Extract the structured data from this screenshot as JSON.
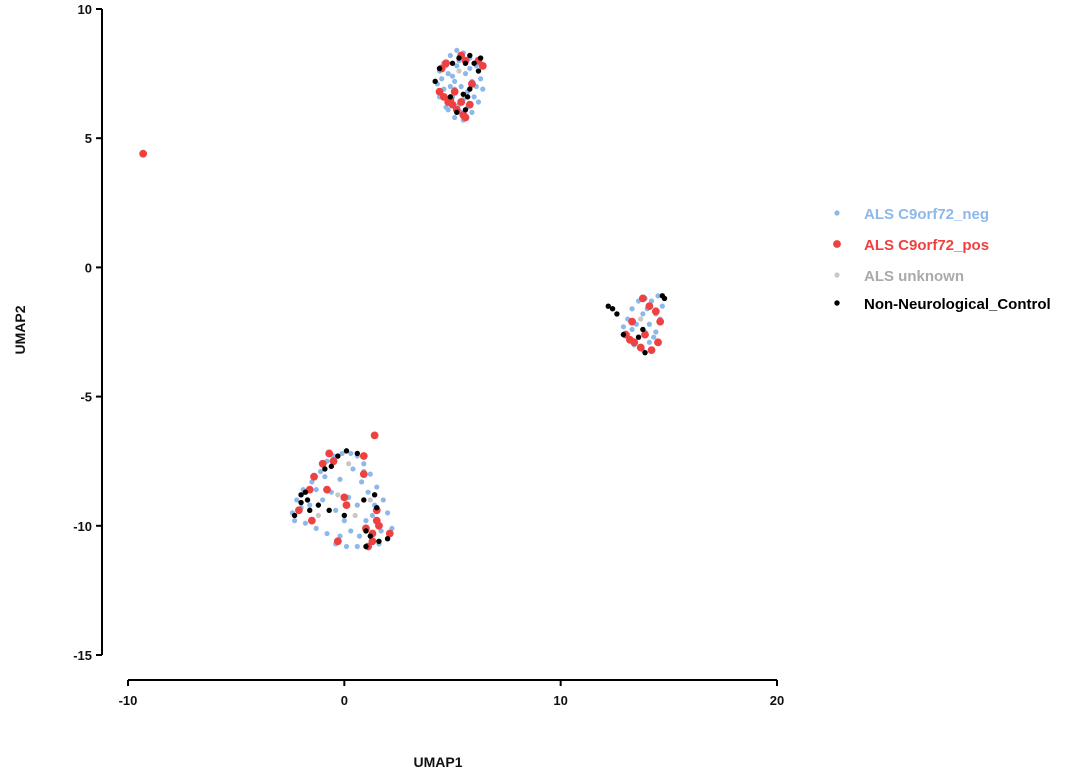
{
  "chart_data": {
    "type": "scatter",
    "xlabel": "UMAP1",
    "ylabel": "UMAP2",
    "xlim": [
      -10,
      20
    ],
    "ylim": [
      -15,
      10
    ],
    "xticks": [
      -10,
      0,
      10,
      20
    ],
    "yticks": [
      10,
      5,
      0,
      -5,
      -10,
      -15
    ],
    "grid": false,
    "legend_position": "right",
    "series": [
      {
        "name": "ALS C9orf72_neg",
        "color": "#8db8ec",
        "marker_size": "small",
        "points": [
          [
            4.6,
            7.9
          ],
          [
            4.9,
            8.2
          ],
          [
            5.2,
            8.4
          ],
          [
            5.5,
            8.3
          ],
          [
            5.8,
            8.1
          ],
          [
            6.1,
            7.8
          ],
          [
            6.3,
            7.3
          ],
          [
            6.4,
            6.9
          ],
          [
            6.2,
            6.4
          ],
          [
            5.9,
            6.0
          ],
          [
            5.5,
            5.7
          ],
          [
            5.1,
            5.8
          ],
          [
            4.7,
            6.2
          ],
          [
            4.4,
            6.6
          ],
          [
            4.3,
            7.1
          ],
          [
            4.4,
            7.6
          ],
          [
            4.8,
            7.5
          ],
          [
            5.1,
            7.2
          ],
          [
            5.4,
            7.0
          ],
          [
            5.7,
            6.8
          ],
          [
            5.0,
            6.6
          ],
          [
            5.3,
            6.3
          ],
          [
            5.6,
            7.5
          ],
          [
            5.9,
            7.2
          ],
          [
            4.9,
            7.0
          ],
          [
            5.2,
            7.8
          ],
          [
            6.0,
            6.6
          ],
          [
            4.6,
            6.9
          ],
          [
            5.4,
            6.0
          ],
          [
            5.8,
            7.7
          ],
          [
            5.0,
            7.4
          ],
          [
            5.5,
            6.5
          ],
          [
            4.8,
            6.1
          ],
          [
            6.2,
            7.6
          ],
          [
            5.3,
            8.0
          ],
          [
            4.5,
            7.3
          ],
          [
            5.7,
            6.2
          ],
          [
            6.1,
            7.0
          ],
          [
            5.1,
            6.9
          ],
          [
            4.7,
            7.8
          ],
          [
            13.1,
            -2.0
          ],
          [
            13.3,
            -1.6
          ],
          [
            13.6,
            -1.3
          ],
          [
            13.9,
            -1.2
          ],
          [
            14.2,
            -1.3
          ],
          [
            14.5,
            -1.1
          ],
          [
            14.7,
            -1.5
          ],
          [
            14.6,
            -2.0
          ],
          [
            14.4,
            -2.5
          ],
          [
            14.1,
            -2.9
          ],
          [
            13.8,
            -3.2
          ],
          [
            13.4,
            -3.0
          ],
          [
            13.1,
            -2.6
          ],
          [
            12.9,
            -2.3
          ],
          [
            13.5,
            -2.2
          ],
          [
            13.8,
            -1.8
          ],
          [
            14.1,
            -2.2
          ],
          [
            13.6,
            -2.7
          ],
          [
            14.0,
            -1.6
          ],
          [
            14.3,
            -2.7
          ],
          [
            13.3,
            -2.4
          ],
          [
            13.9,
            -2.5
          ],
          [
            14.4,
            -1.8
          ],
          [
            -2.4,
            -9.5
          ],
          [
            -2.2,
            -9.0
          ],
          [
            -1.9,
            -8.6
          ],
          [
            -1.5,
            -8.3
          ],
          [
            -1.1,
            -7.9
          ],
          [
            -0.8,
            -7.5
          ],
          [
            -0.5,
            -7.3
          ],
          [
            -0.1,
            -7.2
          ],
          [
            0.3,
            -7.2
          ],
          [
            0.6,
            -7.3
          ],
          [
            0.9,
            -7.6
          ],
          [
            1.2,
            -8.0
          ],
          [
            1.5,
            -8.5
          ],
          [
            1.8,
            -9.0
          ],
          [
            2.0,
            -9.5
          ],
          [
            2.2,
            -10.1
          ],
          [
            2.0,
            -10.5
          ],
          [
            1.6,
            -10.7
          ],
          [
            1.1,
            -10.8
          ],
          [
            0.6,
            -10.8
          ],
          [
            0.1,
            -10.8
          ],
          [
            -0.4,
            -10.7
          ],
          [
            -0.8,
            -10.3
          ],
          [
            -1.3,
            -10.1
          ],
          [
            -1.8,
            -9.9
          ],
          [
            -2.3,
            -9.8
          ],
          [
            -0.6,
            -8.7
          ],
          [
            -0.2,
            -8.2
          ],
          [
            0.2,
            -8.9
          ],
          [
            0.6,
            -9.2
          ],
          [
            1.0,
            -9.8
          ],
          [
            -0.4,
            -9.4
          ],
          [
            0.3,
            -10.2
          ],
          [
            1.4,
            -9.2
          ],
          [
            -1.0,
            -9.0
          ],
          [
            0.8,
            -8.3
          ],
          [
            -1.6,
            -9.2
          ],
          [
            0.0,
            -9.8
          ],
          [
            1.7,
            -10.2
          ],
          [
            -0.9,
            -8.1
          ],
          [
            0.4,
            -7.8
          ],
          [
            1.1,
            -8.7
          ],
          [
            -0.2,
            -10.4
          ],
          [
            -1.3,
            -8.6
          ],
          [
            0.7,
            -10.4
          ],
          [
            1.3,
            -9.6
          ],
          [
            -2.0,
            -9.3
          ],
          [
            0.9,
            -7.9
          ]
        ]
      },
      {
        "name": "ALS C9orf72_pos",
        "color": "#ee4141",
        "marker_size": "large",
        "points": [
          [
            -9.3,
            4.4
          ],
          [
            4.5,
            7.7
          ],
          [
            4.4,
            6.8
          ],
          [
            4.6,
            6.6
          ],
          [
            4.8,
            6.4
          ],
          [
            4.9,
            6.5
          ],
          [
            5.0,
            6.3
          ],
          [
            5.2,
            6.1
          ],
          [
            5.4,
            6.4
          ],
          [
            5.5,
            5.9
          ],
          [
            5.6,
            5.8
          ],
          [
            5.8,
            6.3
          ],
          [
            6.4,
            7.8
          ],
          [
            6.2,
            8.0
          ],
          [
            5.6,
            8.0
          ],
          [
            5.4,
            8.2
          ],
          [
            5.9,
            7.1
          ],
          [
            5.1,
            6.8
          ],
          [
            4.7,
            7.9
          ],
          [
            13.0,
            -2.6
          ],
          [
            13.2,
            -2.8
          ],
          [
            13.4,
            -2.9
          ],
          [
            13.7,
            -3.1
          ],
          [
            14.2,
            -3.2
          ],
          [
            14.5,
            -2.9
          ],
          [
            14.6,
            -2.1
          ],
          [
            14.4,
            -1.7
          ],
          [
            13.8,
            -1.2
          ],
          [
            14.1,
            -1.5
          ],
          [
            13.3,
            -2.1
          ],
          [
            13.9,
            -2.6
          ],
          [
            1.4,
            -6.5
          ],
          [
            0.9,
            -7.3
          ],
          [
            -0.7,
            -7.2
          ],
          [
            -1.0,
            -7.6
          ],
          [
            -1.4,
            -8.1
          ],
          [
            -1.6,
            -8.6
          ],
          [
            -2.1,
            -9.4
          ],
          [
            -1.5,
            -9.8
          ],
          [
            0.9,
            -8.0
          ],
          [
            0.0,
            -8.9
          ],
          [
            0.1,
            -9.2
          ],
          [
            -0.8,
            -8.6
          ],
          [
            1.0,
            -10.1
          ],
          [
            1.3,
            -10.3
          ],
          [
            1.5,
            -9.8
          ],
          [
            1.6,
            -10.0
          ],
          [
            2.1,
            -10.3
          ],
          [
            1.3,
            -10.6
          ],
          [
            1.1,
            -10.8
          ],
          [
            -0.3,
            -10.6
          ],
          [
            -0.5,
            -7.5
          ],
          [
            1.5,
            -9.4
          ]
        ]
      },
      {
        "name": "ALS unknown",
        "color": "#c8c8c8",
        "marker_size": "small",
        "points": [
          [
            -0.3,
            -8.8
          ],
          [
            0.5,
            -9.6
          ],
          [
            1.2,
            -9.0
          ],
          [
            -1.2,
            -9.6
          ],
          [
            0.2,
            -7.6
          ],
          [
            5.3,
            7.6
          ],
          [
            13.7,
            -2.0
          ]
        ]
      },
      {
        "name": "Non-Neurological_Control",
        "color": "#000000",
        "marker_size": "medium",
        "points": [
          [
            4.2,
            7.2
          ],
          [
            4.4,
            7.7
          ],
          [
            5.0,
            7.9
          ],
          [
            5.3,
            8.1
          ],
          [
            5.6,
            7.9
          ],
          [
            5.8,
            8.2
          ],
          [
            6.0,
            7.9
          ],
          [
            6.3,
            8.1
          ],
          [
            6.2,
            7.6
          ],
          [
            5.7,
            6.6
          ],
          [
            5.5,
            6.7
          ],
          [
            5.8,
            6.9
          ],
          [
            5.2,
            6.0
          ],
          [
            5.6,
            6.1
          ],
          [
            4.9,
            6.6
          ],
          [
            12.2,
            -1.5
          ],
          [
            12.4,
            -1.6
          ],
          [
            12.6,
            -1.8
          ],
          [
            12.9,
            -2.6
          ],
          [
            13.6,
            -2.7
          ],
          [
            13.8,
            -2.4
          ],
          [
            13.9,
            -3.3
          ],
          [
            14.7,
            -1.1
          ],
          [
            14.8,
            -1.2
          ],
          [
            -2.3,
            -9.6
          ],
          [
            -2.0,
            -9.1
          ],
          [
            -2.0,
            -8.8
          ],
          [
            -1.8,
            -8.7
          ],
          [
            -1.7,
            -9.0
          ],
          [
            -1.6,
            -9.4
          ],
          [
            -1.2,
            -9.2
          ],
          [
            -0.9,
            -7.8
          ],
          [
            -0.6,
            -7.7
          ],
          [
            -0.3,
            -7.3
          ],
          [
            0.1,
            -7.1
          ],
          [
            0.6,
            -7.2
          ],
          [
            -0.7,
            -9.4
          ],
          [
            0.0,
            -9.6
          ],
          [
            1.0,
            -10.2
          ],
          [
            1.2,
            -10.4
          ],
          [
            1.0,
            -10.8
          ],
          [
            1.6,
            -10.6
          ],
          [
            2.0,
            -10.5
          ],
          [
            1.5,
            -9.3
          ],
          [
            1.4,
            -8.8
          ],
          [
            0.9,
            -9.0
          ]
        ]
      }
    ]
  }
}
